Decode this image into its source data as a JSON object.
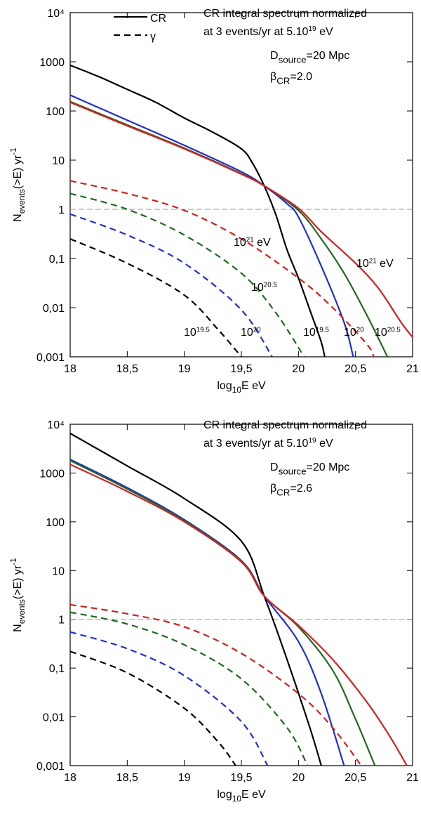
{
  "chart_data": [
    {
      "type": "line",
      "yscale": "log",
      "xlim": [
        18,
        21
      ],
      "ylim": [
        0.001,
        10000
      ],
      "xticks": [
        18,
        {
          "value": 18.5,
          "label": "18,5"
        },
        19,
        {
          "value": 19.5,
          "label": "19,5"
        },
        20,
        {
          "value": 20.5,
          "label": "20,5"
        },
        21
      ],
      "yticks": [
        {
          "value": 0.001,
          "label": "0,001"
        },
        {
          "value": 0.01,
          "label": "0,01"
        },
        {
          "value": 0.1,
          "label": "0,1"
        },
        1,
        10,
        100,
        1000,
        {
          "value": 10000,
          "label": "10⁴"
        }
      ],
      "xlabel": [
        {
          "t": "log"
        },
        {
          "t": "10",
          "s": "sub"
        },
        {
          "t": "E eV"
        }
      ],
      "ylabel": [
        {
          "t": "N"
        },
        {
          "t": "events",
          "s": "sub"
        },
        {
          "t": "(>E) yr"
        },
        {
          "t": "-1",
          "s": "sup"
        }
      ],
      "hline": 1,
      "legend": [
        {
          "label": "CR",
          "dash": false
        },
        {
          "label": "γ",
          "dash": true
        }
      ],
      "annotations": [
        [
          {
            "t": "CR integral spectrum normalized"
          }
        ],
        [
          {
            "t": "at 3 events/yr at 5.10"
          },
          {
            "t": "19",
            "s": "sup"
          },
          {
            "t": " eV"
          }
        ],
        [
          {
            "t": "D"
          },
          {
            "t": "source",
            "s": "sub"
          },
          {
            "t": "=20 Mpc"
          }
        ],
        [
          {
            "t": "β"
          },
          {
            "t": "CR",
            "s": "sub"
          },
          {
            "t": "=2.0"
          }
        ],
        [
          {
            "t": "10"
          },
          {
            "t": "21",
            "s": "sup"
          },
          {
            "t": " eV"
          }
        ],
        [
          {
            "t": "10"
          },
          {
            "t": "21",
            "s": "sup"
          },
          {
            "t": " eV"
          }
        ],
        [
          {
            "t": "10"
          },
          {
            "t": "20.5",
            "s": "sup"
          }
        ],
        [
          {
            "t": "10"
          },
          {
            "t": "19.5",
            "s": "sup"
          }
        ],
        [
          {
            "t": "10"
          },
          {
            "t": "20",
            "s": "sup"
          }
        ],
        [
          {
            "t": "10"
          },
          {
            "t": "19.5",
            "s": "sup"
          }
        ],
        [
          {
            "t": "10"
          },
          {
            "t": "20",
            "s": "sup"
          }
        ],
        [
          {
            "t": "10"
          },
          {
            "t": "20.5",
            "s": "sup"
          }
        ]
      ],
      "series": [
        {
          "color": "#000000",
          "dash": false,
          "x": [
            18,
            18.25,
            18.5,
            18.75,
            19,
            19.25,
            19.5,
            19.6,
            19.7,
            19.8,
            19.9,
            20,
            20.1,
            20.2,
            20.23
          ],
          "values": [
            850,
            500,
            275,
            150,
            72,
            37,
            17,
            8.5,
            3,
            0.8,
            0.15,
            0.04,
            0.009,
            0.002,
            0.001
          ]
        },
        {
          "color": "#1f2fd0",
          "dash": false,
          "x": [
            18,
            18.5,
            19,
            19.5,
            19.7,
            19.9,
            20,
            20.2,
            20.4,
            20.48
          ],
          "values": [
            210,
            65,
            20,
            5.8,
            3,
            1.3,
            0.7,
            0.07,
            0.005,
            0.001
          ]
        },
        {
          "color": "#1e6b1e",
          "dash": false,
          "x": [
            18,
            18.5,
            19,
            19.5,
            19.7,
            20,
            20.2,
            20.4,
            20.6,
            20.78
          ],
          "values": [
            155,
            52,
            17.5,
            5.3,
            3,
            0.95,
            0.25,
            0.05,
            0.007,
            0.001
          ]
        },
        {
          "color": "#d42020",
          "dash": false,
          "x": [
            18,
            18.5,
            19,
            19.5,
            19.7,
            20,
            20.2,
            20.5,
            20.7,
            20.9,
            21
          ],
          "values": [
            150,
            50,
            17,
            5.2,
            3,
            1.05,
            0.35,
            0.08,
            0.025,
            0.005,
            0.0025
          ]
        },
        {
          "color": "#000000",
          "dash": true,
          "x": [
            18,
            18.5,
            19,
            19.3,
            19.5
          ],
          "values": [
            0.25,
            0.08,
            0.018,
            0.0035,
            0.001
          ]
        },
        {
          "color": "#1f2fd0",
          "dash": true,
          "x": [
            18,
            18.5,
            19,
            19.5,
            19.77
          ],
          "values": [
            0.8,
            0.3,
            0.08,
            0.009,
            0.001
          ]
        },
        {
          "color": "#1e6b1e",
          "dash": true,
          "x": [
            18,
            18.5,
            19,
            19.5,
            19.8,
            20.05
          ],
          "values": [
            2.1,
            1,
            0.3,
            0.05,
            0.008,
            0.001
          ]
        },
        {
          "color": "#d42020",
          "dash": true,
          "x": [
            18,
            18.5,
            19,
            19.5,
            20,
            20.3,
            20.6,
            20.66
          ],
          "values": [
            3.8,
            2.1,
            0.95,
            0.25,
            0.04,
            0.01,
            0.0018,
            0.001
          ]
        }
      ]
    },
    {
      "type": "line",
      "yscale": "log",
      "xlim": [
        18,
        21
      ],
      "ylim": [
        0.001,
        10000
      ],
      "xticks": [
        18,
        {
          "value": 18.5,
          "label": "18,5"
        },
        19,
        {
          "value": 19.5,
          "label": "19,5"
        },
        20,
        {
          "value": 20.5,
          "label": "20,5"
        },
        21
      ],
      "yticks": [
        {
          "value": 0.001,
          "label": "0,001"
        },
        {
          "value": 0.01,
          "label": "0,01"
        },
        {
          "value": 0.1,
          "label": "0,1"
        },
        1,
        10,
        100,
        1000,
        {
          "value": 10000,
          "label": "10⁴"
        }
      ],
      "xlabel": [
        {
          "t": "log"
        },
        {
          "t": "10",
          "s": "sub"
        },
        {
          "t": "E eV"
        }
      ],
      "ylabel": [
        {
          "t": "N"
        },
        {
          "t": "events",
          "s": "sub"
        },
        {
          "t": "(>E) yr"
        },
        {
          "t": "-1",
          "s": "sup"
        }
      ],
      "hline": 1,
      "annotations": [
        [
          {
            "t": "CR integral spectrum normalized"
          }
        ],
        [
          {
            "t": "at 3 events/yr at 5.10"
          },
          {
            "t": "19",
            "s": "sup"
          },
          {
            "t": " eV"
          }
        ],
        [
          {
            "t": "D"
          },
          {
            "t": "source",
            "s": "sub"
          },
          {
            "t": "=20 Mpc"
          }
        ],
        [
          {
            "t": "β"
          },
          {
            "t": "CR",
            "s": "sub"
          },
          {
            "t": "=2.6"
          }
        ]
      ],
      "series": [
        {
          "color": "#000000",
          "dash": false,
          "x": [
            18,
            18.5,
            19,
            19.5,
            19.7,
            19.9,
            20.1,
            20.2
          ],
          "values": [
            6500,
            1400,
            300,
            40,
            3,
            0.15,
            0.006,
            0.001
          ]
        },
        {
          "color": "#1f2fd0",
          "dash": false,
          "x": [
            18,
            18.5,
            19,
            19.5,
            19.7,
            20,
            20.2,
            20.4
          ],
          "values": [
            1900,
            500,
            110,
            16,
            3,
            0.35,
            0.03,
            0.001
          ]
        },
        {
          "color": "#1e6b1e",
          "dash": false,
          "x": [
            18,
            18.5,
            19,
            19.5,
            19.7,
            20,
            20.3,
            20.5,
            20.67
          ],
          "values": [
            1800,
            470,
            105,
            15.5,
            3,
            0.7,
            0.09,
            0.009,
            0.001
          ]
        },
        {
          "color": "#d42020",
          "dash": false,
          "x": [
            18,
            18.5,
            19,
            19.5,
            19.7,
            20,
            20.3,
            20.6,
            20.8,
            20.95
          ],
          "values": [
            1500,
            420,
            100,
            15,
            3,
            0.75,
            0.15,
            0.02,
            0.004,
            0.001
          ]
        },
        {
          "color": "#000000",
          "dash": true,
          "x": [
            18,
            18.5,
            19,
            19.3,
            19.45
          ],
          "values": [
            0.22,
            0.08,
            0.015,
            0.003,
            0.001
          ]
        },
        {
          "color": "#1f2fd0",
          "dash": true,
          "x": [
            18,
            18.5,
            19,
            19.5,
            19.73
          ],
          "values": [
            0.55,
            0.25,
            0.07,
            0.008,
            0.001
          ]
        },
        {
          "color": "#1e6b1e",
          "dash": true,
          "x": [
            18,
            18.5,
            19,
            19.5,
            19.9,
            20.08
          ],
          "values": [
            1.4,
            0.8,
            0.3,
            0.06,
            0.006,
            0.001
          ]
        },
        {
          "color": "#d42020",
          "dash": true,
          "x": [
            18,
            18.5,
            19,
            19.5,
            20,
            20.3,
            20.55
          ],
          "values": [
            2,
            1.3,
            0.7,
            0.2,
            0.03,
            0.006,
            0.001
          ]
        }
      ]
    }
  ]
}
